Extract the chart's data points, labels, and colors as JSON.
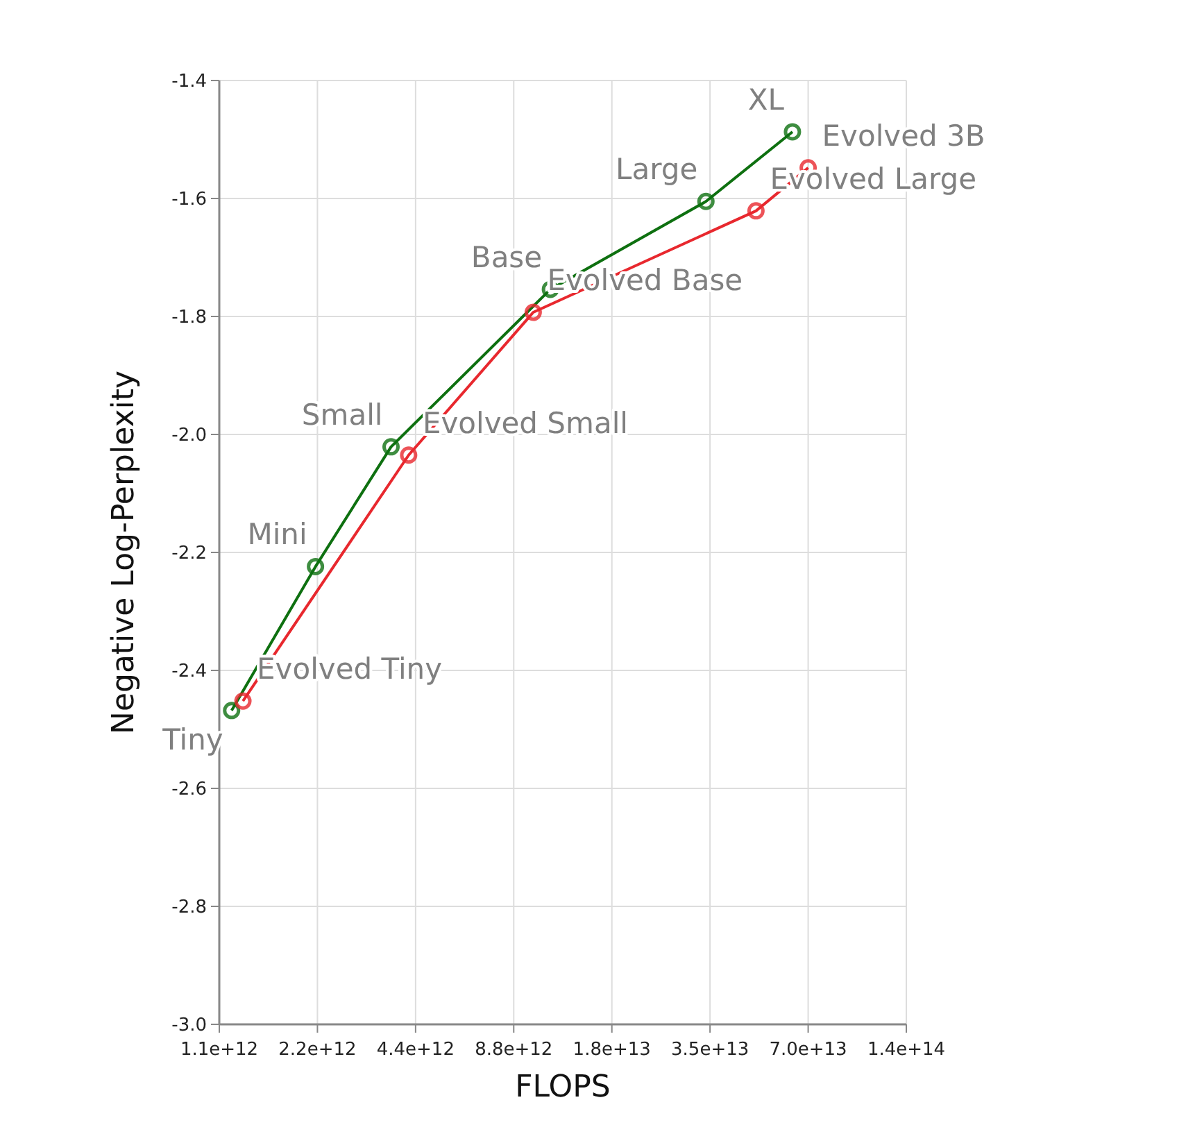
{
  "chart_data": {
    "type": "line",
    "xlabel": "FLOPS",
    "ylabel": "Negative Log-Perplexity",
    "log": "x",
    "xlim": [
      1100000000000.0,
      140800000000000.0
    ],
    "xticks": [
      {
        "value": 1100000000000.0,
        "label": "1.1e+12"
      },
      {
        "value": 2200000000000.0,
        "label": "2.2e+12"
      },
      {
        "value": 4400000000000.0,
        "label": "4.4e+12"
      },
      {
        "value": 8800000000000.0,
        "label": "8.8e+12"
      },
      {
        "value": 17600000000000.0,
        "label": "1.8e+13"
      },
      {
        "value": 35200000000000.0,
        "label": "3.5e+13"
      },
      {
        "value": 70400000000000.0,
        "label": "7.0e+13"
      },
      {
        "value": 140800000000000.0,
        "label": "1.4e+14"
      }
    ],
    "ylim": [
      -3.0,
      -1.4
    ],
    "yticks": [
      {
        "value": -3.0,
        "label": "-3.0"
      },
      {
        "value": -2.8,
        "label": "-2.8"
      },
      {
        "value": -2.6,
        "label": "-2.6"
      },
      {
        "value": -2.4,
        "label": "-2.4"
      },
      {
        "value": -2.2,
        "label": "-2.2"
      },
      {
        "value": -2.0,
        "label": "-2.0"
      },
      {
        "value": -1.8,
        "label": "-1.8"
      },
      {
        "value": -1.6,
        "label": "-1.6"
      },
      {
        "value": -1.4,
        "label": "-1.4"
      }
    ],
    "grid": true,
    "marker": "circle",
    "line_style": "solid",
    "series": [
      {
        "color": "#0e7010",
        "x": [
          1200000000000.0,
          2170000000000.0,
          3700000000000.0,
          11400000000000.0,
          34200000000000.0,
          63000000000000.0
        ],
        "values": [
          -2.468,
          -2.224,
          -2.021,
          -1.754,
          -1.605,
          -1.487
        ]
      },
      {
        "color": "#e8282e",
        "x": [
          1300000000000.0,
          4190000000000.0,
          10100000000000.0,
          48700000000000.0,
          70400000000000.0
        ],
        "values": [
          -2.452,
          -2.035,
          -1.793,
          -1.621,
          -1.548
        ]
      }
    ],
    "annotations": [
      {
        "text": "Tiny",
        "x": 1200000000000.0,
        "y": -2.468
      },
      {
        "text": "Mini",
        "x": 2170000000000.0,
        "y": -2.224
      },
      {
        "text": "Small",
        "x": 3700000000000.0,
        "y": -2.021
      },
      {
        "text": "Base",
        "x": 11400000000000.0,
        "y": -1.754
      },
      {
        "text": "Large",
        "x": 34200000000000.0,
        "y": -1.605
      },
      {
        "text": "XL",
        "x": 63000000000000.0,
        "y": -1.487
      },
      {
        "text": "Evolved Tiny",
        "x": 1300000000000.0,
        "y": -2.452
      },
      {
        "text": "Evolved Small",
        "x": 4190000000000.0,
        "y": -2.035
      },
      {
        "text": "Evolved Base",
        "x": 10100000000000.0,
        "y": -1.793
      },
      {
        "text": "Evolved Large",
        "x": 48700000000000.0,
        "y": -1.621
      },
      {
        "text": "Evolved 3B",
        "x": 70400000000000.0,
        "y": -1.548
      }
    ]
  }
}
